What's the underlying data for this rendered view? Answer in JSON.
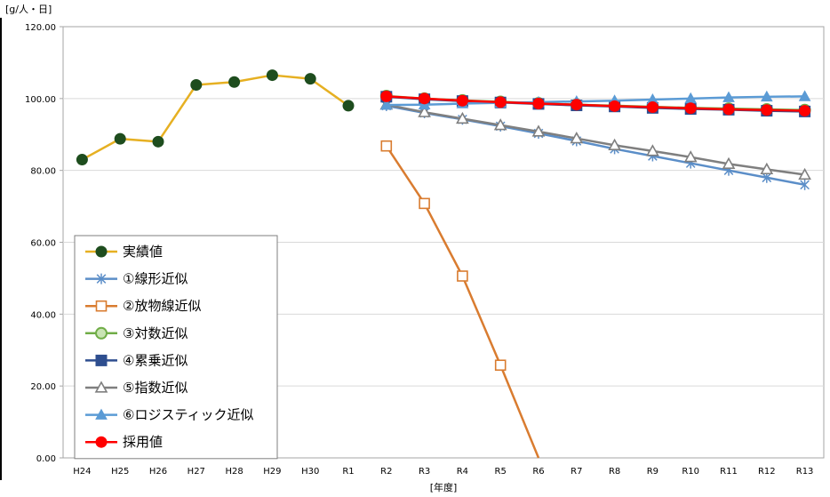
{
  "chart_data": {
    "type": "line",
    "title": "",
    "ylabel": "[g/人・日]",
    "xlabel": "[年度]",
    "ylim": [
      0,
      120
    ],
    "yticks": [
      "0.00",
      "20.00",
      "40.00",
      "60.00",
      "80.00",
      "100.00",
      "120.00"
    ],
    "grid": "horizontal",
    "legend_position": "bottom-left",
    "categories": [
      "H24",
      "H25",
      "H26",
      "H27",
      "H28",
      "H29",
      "H30",
      "R1",
      "R2",
      "R3",
      "R4",
      "R5",
      "R6",
      "R7",
      "R8",
      "R9",
      "R10",
      "R11",
      "R12",
      "R13"
    ],
    "series": [
      {
        "name": "実績値",
        "color": "#e6b022",
        "marker": "filled-circle",
        "marker_color": "#1e4d1e",
        "values": [
          83.0,
          88.8,
          88.0,
          103.8,
          104.6,
          106.5,
          105.5,
          98.0,
          null,
          null,
          null,
          null,
          null,
          null,
          null,
          null,
          null,
          null,
          null,
          null
        ]
      },
      {
        "name": "①線形近似",
        "color": "#5b8ec8",
        "marker": "asterisk",
        "marker_color": "#5b8ec8",
        "values": [
          null,
          null,
          null,
          null,
          null,
          null,
          null,
          null,
          98.0,
          96.0,
          94.2,
          92.3,
          90.3,
          88.2,
          86.0,
          84.0,
          82.0,
          80.0,
          78.0,
          76.0
        ]
      },
      {
        "name": "②放物線近似",
        "color": "#d97c30",
        "marker": "open-square",
        "marker_color": "#d97c30",
        "values": [
          null,
          null,
          null,
          null,
          null,
          null,
          null,
          null,
          86.8,
          70.8,
          50.6,
          25.8,
          0.0,
          null,
          null,
          null,
          null,
          null,
          null,
          null
        ]
      },
      {
        "name": "③対数近似",
        "color": "#70ad47",
        "marker": "open-circle",
        "marker_color": "#70ad47",
        "values": [
          null,
          null,
          null,
          null,
          null,
          null,
          null,
          null,
          100.7,
          100.0,
          99.5,
          99.1,
          98.7,
          98.3,
          98.0,
          97.7,
          97.4,
          97.2,
          97.0,
          96.8
        ]
      },
      {
        "name": "④累乗近似",
        "color": "#2e4e8f",
        "marker": "filled-square",
        "marker_color": "#2e4e8f",
        "values": [
          null,
          null,
          null,
          null,
          null,
          null,
          null,
          null,
          100.5,
          99.8,
          99.3,
          98.9,
          98.5,
          98.1,
          97.8,
          97.4,
          97.1,
          96.9,
          96.6,
          96.4
        ]
      },
      {
        "name": "⑤指数近似",
        "color": "#7f7f7f",
        "marker": "open-triangle",
        "marker_color": "#7f7f7f",
        "values": [
          null,
          null,
          null,
          null,
          null,
          null,
          null,
          null,
          98.3,
          96.2,
          94.4,
          92.6,
          90.8,
          88.9,
          87.0,
          85.4,
          83.7,
          81.8,
          80.3,
          78.8
        ]
      },
      {
        "name": "⑥ロジスティック近似",
        "color": "#5b9bd5",
        "marker": "filled-triangle",
        "marker_color": "#5b9bd5",
        "values": [
          null,
          null,
          null,
          null,
          null,
          null,
          null,
          null,
          98.2,
          98.3,
          98.6,
          98.8,
          99.0,
          99.2,
          99.4,
          99.7,
          100.0,
          100.3,
          100.5,
          100.6
        ]
      },
      {
        "name": "採用値",
        "color": "#ff0000",
        "marker": "filled-circle",
        "marker_color": "#ff0000",
        "values": [
          null,
          null,
          null,
          null,
          null,
          null,
          null,
          null,
          100.6,
          100.0,
          99.4,
          99.0,
          98.6,
          98.3,
          97.9,
          97.6,
          97.3,
          97.0,
          96.8,
          96.6
        ]
      }
    ]
  }
}
